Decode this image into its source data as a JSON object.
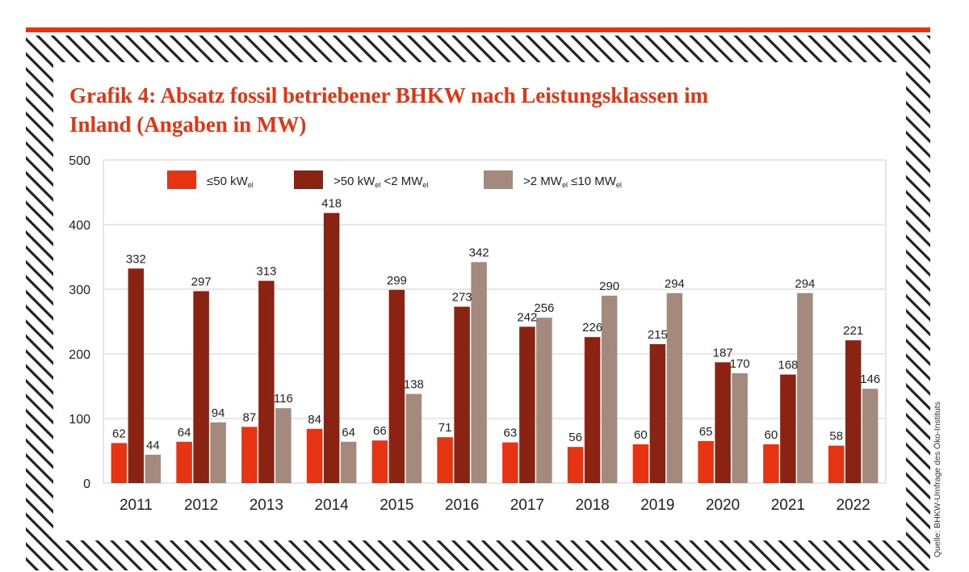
{
  "title_line1": "Grafik 4: Absatz fossil betriebener BHKW nach Leistungsklassen im",
  "title_line2": "Inland (Angaben in MW)",
  "source": "Quelle: BHKW-Umfrage des Öko-Instituts",
  "colors": {
    "accent": "#e63312",
    "series1": "#e63312",
    "series2": "#8b2313",
    "series3": "#a38a7c"
  },
  "legend": [
    {
      "main": "≤50 kW",
      "sub": "el",
      "rest": []
    },
    {
      "main": ">50 kW",
      "sub": "el",
      "rest": [
        {
          "t": " <2 MW",
          "s": "el"
        }
      ]
    },
    {
      "main": ">2 MW",
      "sub": "el",
      "rest": [
        {
          "t": " ≤10 MW",
          "s": "el"
        }
      ]
    }
  ],
  "chart_data": {
    "type": "bar",
    "title": "Grafik 4: Absatz fossil betriebener BHKW nach Leistungsklassen im Inland (Angaben in MW)",
    "xlabel": "",
    "ylabel": "",
    "ylim": [
      0,
      500
    ],
    "yticks": [
      0,
      100,
      200,
      300,
      400,
      500
    ],
    "grid": true,
    "legend_position": "top",
    "categories": [
      "2011",
      "2012",
      "2013",
      "2014",
      "2015",
      "2016",
      "2017",
      "2018",
      "2019",
      "2020",
      "2021",
      "2022"
    ],
    "series": [
      {
        "name": "≤50 kWel",
        "values": [
          62,
          64,
          87,
          84,
          66,
          71,
          63,
          56,
          60,
          65,
          60,
          58
        ]
      },
      {
        "name": ">50 kWel <2 MWel",
        "values": [
          332,
          297,
          313,
          418,
          299,
          273,
          242,
          226,
          215,
          187,
          168,
          221
        ]
      },
      {
        "name": ">2 MWel ≤10 MWel",
        "values": [
          44,
          94,
          116,
          64,
          138,
          342,
          256,
          290,
          294,
          170,
          294,
          146
        ]
      }
    ]
  }
}
